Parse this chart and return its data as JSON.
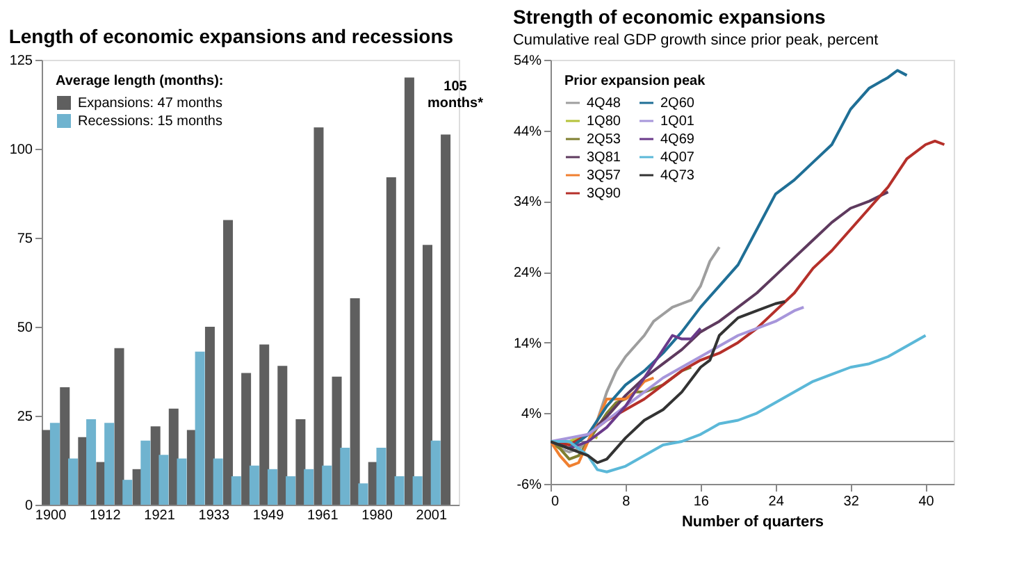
{
  "chart_data": [
    {
      "type": "bar",
      "title": "Length of economic expansions and recessions",
      "legend_title": "Average length (months):",
      "legend": "top left",
      "grid": false,
      "categories": [
        "1900",
        null,
        null,
        "1912",
        null,
        null,
        "1921",
        null,
        null,
        "1933",
        null,
        null,
        "1949",
        null,
        null,
        "1961",
        null,
        null,
        "1980",
        null,
        null,
        "2001",
        null
      ],
      "ylim": [
        0,
        125
      ],
      "yticks": [
        0,
        25,
        50,
        75,
        100,
        125
      ],
      "annotations": [
        {
          "text": "105 months*",
          "y": 105
        }
      ],
      "series": [
        {
          "name": "Expansions: 47 months",
          "color": "#5f5f5f",
          "values": [
            21,
            33,
            19,
            12,
            44,
            10,
            22,
            27,
            21,
            50,
            80,
            37,
            45,
            39,
            24,
            106,
            36,
            58,
            12,
            92,
            120,
            73,
            104
          ]
        },
        {
          "name": "Recessions: 15 months",
          "color": "#6fb3cf",
          "values": [
            23,
            13,
            24,
            23,
            7,
            18,
            14,
            13,
            43,
            13,
            8,
            11,
            10,
            8,
            10,
            11,
            16,
            6,
            16,
            8,
            8,
            18,
            null
          ]
        }
      ]
    },
    {
      "type": "line",
      "title": "Strength of economic expansions",
      "subtitle": "Cumulative real GDP growth since prior peak, percent",
      "xlabel": "Number of quarters",
      "legend_title": "Prior expansion peak",
      "legend": "top left",
      "grid": false,
      "xlim": [
        0,
        43
      ],
      "xticks": [
        0,
        8,
        16,
        24,
        32,
        40
      ],
      "ylim": [
        -6,
        54
      ],
      "yticks": [
        {
          "value": -6,
          "label": "-6%"
        },
        {
          "value": 4,
          "label": "4%"
        },
        {
          "value": 14,
          "label": "14%"
        },
        {
          "value": 24,
          "label": "24%"
        },
        {
          "value": 34,
          "label": "34%"
        },
        {
          "value": 44,
          "label": "44%"
        },
        {
          "value": 54,
          "label": "54%"
        }
      ],
      "ref_lines": [
        {
          "axis": "y",
          "value": 0,
          "color": "#8c8c8c"
        }
      ],
      "series": [
        {
          "name": "4Q48",
          "color": "#9e9e9e",
          "x": [
            0,
            1,
            2,
            3,
            4,
            5,
            6,
            7,
            8,
            9,
            10,
            11,
            12,
            13,
            14,
            15,
            16,
            17,
            18
          ],
          "values": [
            0,
            -1,
            -1.5,
            -1,
            0,
            3,
            7,
            10,
            12,
            13.5,
            15,
            17,
            18,
            19,
            19.5,
            20,
            22,
            25.5,
            27.5
          ]
        },
        {
          "name": "1Q80",
          "color": "#b5c23a",
          "x": [
            0,
            1,
            2,
            3,
            4,
            5
          ],
          "values": [
            0,
            -1,
            0,
            0.5,
            1,
            0.5
          ]
        },
        {
          "name": "2Q53",
          "color": "#7f7f30",
          "x": [
            0,
            1,
            2,
            3,
            4,
            5,
            6,
            7,
            8,
            9,
            10,
            12,
            14,
            15
          ],
          "values": [
            0,
            -1,
            -2.5,
            -2,
            0,
            2,
            4,
            5.5,
            6,
            7,
            7,
            8,
            10,
            10.5
          ]
        },
        {
          "name": "3Q81",
          "color": "#5e3a5e",
          "x": [
            0,
            2,
            4,
            6,
            8,
            10,
            12,
            14,
            16,
            18,
            20,
            22,
            24,
            26,
            28,
            30,
            32,
            34,
            36
          ],
          "values": [
            0,
            -1,
            1,
            3.5,
            6.5,
            9,
            11,
            13,
            15.5,
            17,
            19,
            21,
            23.5,
            26,
            28.5,
            31,
            33,
            34,
            35.3
          ]
        },
        {
          "name": "3Q57",
          "color": "#f08030",
          "x": [
            0,
            1,
            2,
            3,
            4,
            5,
            6,
            7,
            8,
            9,
            10,
            11
          ],
          "values": [
            0,
            -2,
            -3.5,
            -3,
            0,
            3,
            6,
            6,
            6,
            7,
            8.5,
            9
          ]
        },
        {
          "name": "3Q90",
          "color": "#b5302a",
          "x": [
            0,
            2,
            4,
            6,
            8,
            10,
            12,
            14,
            16,
            18,
            20,
            22,
            24,
            26,
            28,
            30,
            32,
            34,
            36,
            38,
            40,
            41,
            42
          ],
          "values": [
            0,
            -0.5,
            1,
            3,
            4.5,
            6,
            8,
            10,
            11.5,
            12.5,
            14,
            16,
            18.5,
            21,
            24.5,
            27,
            30,
            33,
            36,
            40,
            42,
            42.5,
            42
          ]
        },
        {
          "name": "2Q60",
          "color": "#1f6f96",
          "x": [
            0,
            2,
            4,
            6,
            8,
            10,
            12,
            14,
            16,
            18,
            20,
            22,
            24,
            26,
            28,
            30,
            32,
            34,
            36,
            37,
            38
          ],
          "values": [
            0,
            -1,
            1,
            5,
            8,
            10,
            12.5,
            15.5,
            19,
            22,
            25,
            30,
            35,
            37,
            39.5,
            42,
            47,
            50,
            51.5,
            52.5,
            51.8
          ]
        },
        {
          "name": "1Q01",
          "color": "#a796db",
          "x": [
            0,
            2,
            4,
            6,
            8,
            10,
            12,
            14,
            16,
            18,
            20,
            22,
            24,
            26,
            27
          ],
          "values": [
            0,
            0.5,
            1,
            3,
            5,
            7,
            9,
            10.5,
            12,
            13.5,
            15,
            16,
            17,
            18.5,
            19
          ]
        },
        {
          "name": "4Q69",
          "color": "#6a3a8a",
          "x": [
            0,
            2,
            4,
            6,
            8,
            10,
            12,
            13,
            14,
            15,
            16
          ],
          "values": [
            0,
            -1,
            0,
            2,
            5,
            9,
            13,
            15,
            14.5,
            14.5,
            16
          ]
        },
        {
          "name": "4Q07",
          "color": "#5bb8d8",
          "x": [
            0,
            2,
            4,
            5,
            6,
            8,
            10,
            12,
            14,
            16,
            18,
            20,
            22,
            24,
            26,
            28,
            30,
            32,
            34,
            36,
            38,
            40
          ],
          "values": [
            0,
            0,
            -2,
            -4,
            -4.3,
            -3.5,
            -2,
            -0.5,
            0,
            1,
            2.5,
            3,
            4,
            5.5,
            7,
            8.5,
            9.5,
            10.5,
            11,
            12,
            13.5,
            15
          ]
        },
        {
          "name": "4Q73",
          "color": "#333333",
          "x": [
            0,
            2,
            4,
            5,
            6,
            8,
            10,
            12,
            14,
            16,
            17,
            18,
            20,
            22,
            24,
            25
          ],
          "values": [
            0,
            -1,
            -2,
            -3,
            -2.5,
            0.5,
            3,
            4.5,
            7,
            10.5,
            11.5,
            15,
            17.5,
            18.5,
            19.5,
            19.8
          ]
        }
      ]
    }
  ]
}
